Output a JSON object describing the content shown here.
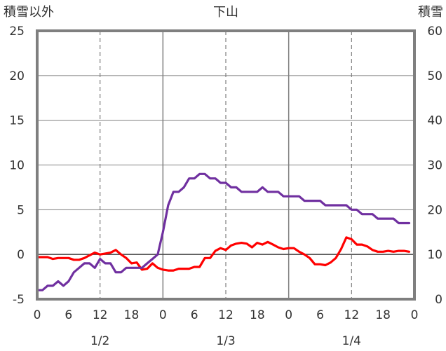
{
  "chart_data": {
    "type": "line",
    "title": "下山",
    "y_left_label": "積雪以外",
    "y_right_label": "積雪",
    "y_left_lim": [
      -5,
      25
    ],
    "y_left_ticks": [
      "-5",
      "0",
      "5",
      "10",
      "15",
      "20",
      "25"
    ],
    "y_right_lim": [
      0,
      60
    ],
    "y_right_ticks": [
      "0",
      "10",
      "20",
      "30",
      "40",
      "50",
      "60"
    ],
    "x_range_hours": [
      0,
      72
    ],
    "x_hour_ticks": [
      "0",
      "6",
      "12",
      "18",
      "0",
      "6",
      "12",
      "18",
      "0",
      "6",
      "12",
      "18",
      "0"
    ],
    "x_date_labels": [
      "1/2",
      "1/3",
      "1/4"
    ],
    "grid": true,
    "colors": {
      "temperature": "#ff0000",
      "snow_depth": "#7030a0",
      "frame": "#7f7f7f",
      "grid": "#7f7f7f"
    },
    "series": [
      {
        "key": "temperature",
        "axis": "left",
        "x": [
          0,
          1,
          2,
          3,
          4,
          5,
          6,
          7,
          8,
          9,
          10,
          11,
          12,
          13,
          14,
          15,
          16,
          17,
          18,
          19,
          20,
          21,
          22,
          23,
          24,
          25,
          26,
          27,
          28,
          29,
          30,
          31,
          32,
          33,
          34,
          35,
          36,
          37,
          38,
          39,
          40,
          41,
          42,
          43,
          44,
          45,
          46,
          47,
          48,
          49,
          50,
          51,
          52,
          53,
          54,
          55,
          56,
          57,
          58,
          59,
          60,
          61,
          62,
          63,
          64,
          65,
          66,
          67,
          68,
          69,
          70,
          71
        ],
        "values": [
          -0.3,
          -0.3,
          -0.3,
          -0.5,
          -0.4,
          -0.4,
          -0.4,
          -0.6,
          -0.6,
          -0.4,
          -0.1,
          0.2,
          0.0,
          0.1,
          0.2,
          0.5,
          0.0,
          -0.4,
          -1.0,
          -0.9,
          -1.7,
          -1.6,
          -1.0,
          -1.5,
          -1.7,
          -1.8,
          -1.8,
          -1.6,
          -1.6,
          -1.6,
          -1.4,
          -1.4,
          -0.4,
          -0.4,
          0.4,
          0.7,
          0.5,
          1.0,
          1.2,
          1.3,
          1.2,
          0.8,
          1.3,
          1.1,
          1.4,
          1.1,
          0.8,
          0.6,
          0.7,
          0.7,
          0.3,
          0.0,
          -0.4,
          -1.1,
          -1.1,
          -1.2,
          -0.9,
          -0.4,
          0.6,
          1.9,
          1.7,
          1.1,
          1.1,
          0.9,
          0.5,
          0.3,
          0.3,
          0.4,
          0.3,
          0.4,
          0.4,
          0.3
        ]
      },
      {
        "key": "snow_depth",
        "axis": "right",
        "x": [
          0,
          1,
          2,
          3,
          4,
          5,
          6,
          7,
          8,
          9,
          10,
          11,
          12,
          13,
          14,
          15,
          16,
          17,
          18,
          19,
          20,
          21,
          22,
          23,
          24,
          25,
          26,
          27,
          28,
          29,
          30,
          31,
          32,
          33,
          34,
          35,
          36,
          37,
          38,
          39,
          40,
          41,
          42,
          43,
          44,
          45,
          46,
          47,
          48,
          49,
          50,
          51,
          52,
          53,
          54,
          55,
          56,
          57,
          58,
          59,
          60,
          61,
          62,
          63,
          64,
          65,
          66,
          67,
          68,
          69,
          70,
          71
        ],
        "values": [
          2,
          2,
          3,
          3,
          4,
          3,
          4,
          6,
          7,
          8,
          8,
          7,
          9,
          8,
          8,
          6,
          6,
          7,
          7,
          7,
          7,
          8,
          9,
          10,
          15,
          21,
          24,
          24,
          25,
          27,
          27,
          28,
          28,
          27,
          27,
          26,
          26,
          25,
          25,
          24,
          24,
          24,
          24,
          25,
          24,
          24,
          24,
          23,
          23,
          23,
          23,
          22,
          22,
          22,
          22,
          21,
          21,
          21,
          21,
          21,
          20,
          20,
          19,
          19,
          19,
          18,
          18,
          18,
          18,
          17,
          17,
          17
        ]
      }
    ]
  }
}
